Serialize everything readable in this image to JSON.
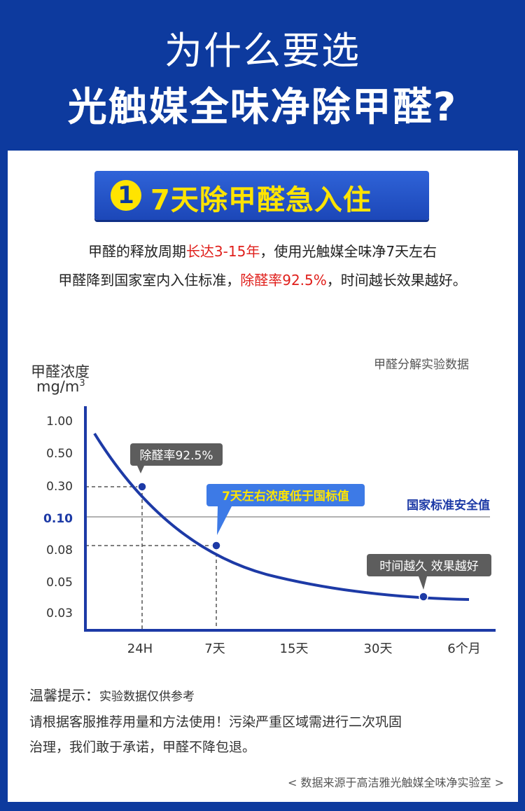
{
  "header": {
    "line1": "为什么要选",
    "line2": "光触媒全味净除甲醛?"
  },
  "badge": {
    "number": "1",
    "text": "7天除甲醛急入住"
  },
  "intro": {
    "line1_a": "甲醛的释放周期",
    "line1_red": "长达3-15年",
    "line1_b": "，使用光触媒全味净7天左右",
    "line2_a": "甲醛降到国家室内入住标准，",
    "line2_red": "除醛率92.5%",
    "line2_b": "，时间越长效果越好。"
  },
  "chart": {
    "note": "甲醛分解实验数据",
    "ylabel_line1": "甲醛浓度",
    "ylabel_line2": "mg/m",
    "ylabel_sup": "3",
    "standard_label": "国家标准安全值",
    "callout_1": "除醛率92.5%",
    "callout_2": "7天左右浓度低于国标值",
    "callout_3": "时间越久 效果越好"
  },
  "chart_data": {
    "type": "line",
    "categories": [
      "24H",
      "7天",
      "15天",
      "30天",
      "6个月"
    ],
    "y_ticks": [
      "1.00",
      "0.50",
      "0.30",
      "0.10",
      "0.08",
      "0.05",
      "0.03"
    ],
    "highlight_tick": "0.10",
    "reference_value": 0.1,
    "points": [
      {
        "x": "24H",
        "y": 0.3
      },
      {
        "x": "7天",
        "y": 0.08
      },
      {
        "x": "6个月",
        "y": 0.04
      }
    ],
    "colors": {
      "curve": "#1d3aa6",
      "standard_line": "#999999",
      "standard_label": "#1d3aa6",
      "axis": "#1d3aa6"
    }
  },
  "tips": {
    "title": "温馨提示：",
    "title_sub": "实验数据仅供参考",
    "line1": "请根据客服推荐用量和方法使用！污染严重区域需进行二次巩固",
    "line2": "治理，我们敢于承诺，甲醛不降包退。"
  },
  "source": "< 数据来源于高洁雅光触媒全味净实验室 >"
}
